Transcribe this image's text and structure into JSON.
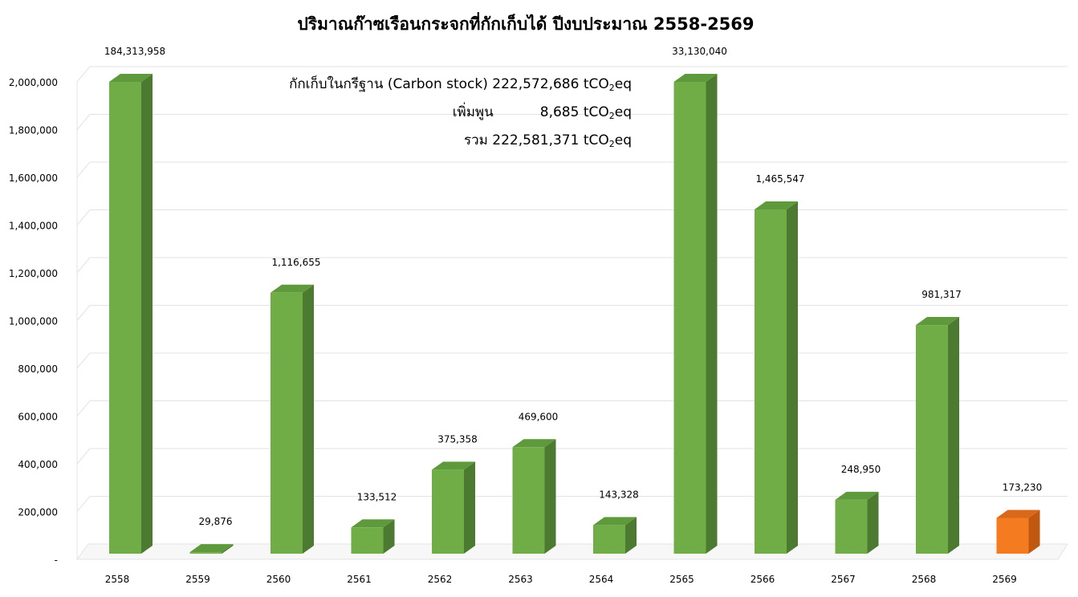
{
  "chart_data": {
    "type": "bar",
    "title": "ปริมาณก๊าซเรือนกระจกที่กักเก็บได้ ปีงบประมาณ 2558-2569",
    "xlabel": "",
    "ylabel": "",
    "categories": [
      "2558",
      "2559",
      "2560",
      "2561",
      "2562",
      "2563",
      "2564",
      "2565",
      "2566",
      "2567",
      "2568",
      "2569"
    ],
    "values": [
      184313958,
      29876,
      1116655,
      133512,
      375358,
      469600,
      143328,
      33130040,
      1465547,
      248950,
      981317,
      173230
    ],
    "data_labels": [
      "184,313,958",
      "29,876",
      "1,116,655",
      "133,512",
      "375,358",
      "469,600",
      "143,328",
      "33,130,040",
      "1,465,547",
      "248,950",
      "981,317",
      "173,230"
    ],
    "ylim": [
      0,
      2000000
    ],
    "y_ticks": [
      0,
      200000,
      400000,
      600000,
      800000,
      1000000,
      1200000,
      1400000,
      1600000,
      1800000,
      2000000
    ],
    "y_tick_labels": [
      "-",
      "200,000",
      "400,000",
      "600,000",
      "800,000",
      "1,000,000",
      "1,200,000",
      "1,400,000",
      "1,600,000",
      "1,800,000",
      "2,000,000"
    ],
    "grid": true,
    "legend": "none",
    "colors": {
      "bar": "#70ad47",
      "bar_side": "#4b7a30",
      "bar_top": "#5e9a3b",
      "highlight": "#f47b20",
      "highlight_side": "#c0580f",
      "highlight_top": "#d9681a",
      "highlight_index": 11,
      "grid": "#e3e3e3"
    },
    "annotations": {
      "line1_prefix": "กักเก็บในกรีฐาน (Carbon stock) 222,572,686 tCO",
      "line2_label": "เพิ่มพูน",
      "line2_value": "8,685 tCO",
      "line3_prefix": "รวม 222,581,371 tCO",
      "sub": "2",
      "suffix": "eq"
    }
  }
}
